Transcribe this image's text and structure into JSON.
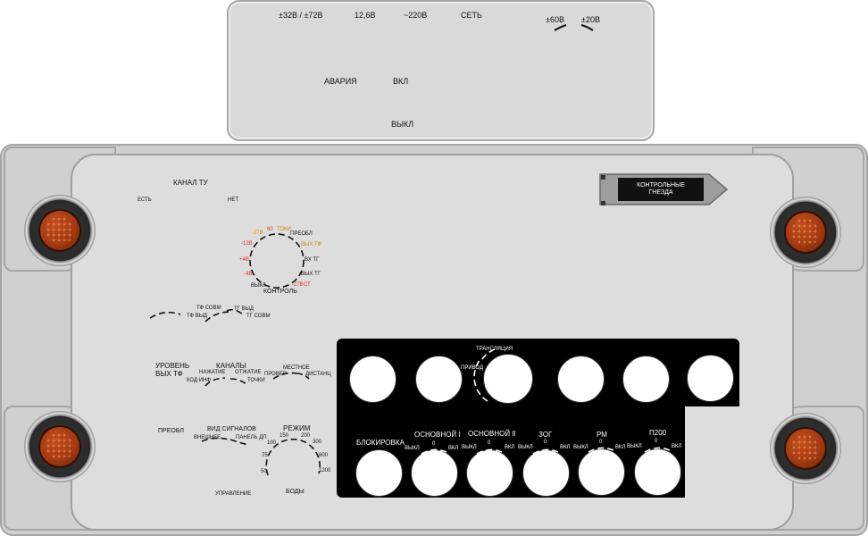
{
  "top_panel": {
    "v_32_72": "±32В / ±72В",
    "v_12_6": "12,6В",
    "v_220": "~220В",
    "network": "СЕТЬ",
    "v_60": "±60В",
    "v_20": "±20В",
    "alarm": "АВАРИЯ",
    "on": "ВКЛ",
    "off": "ВЫКЛ"
  },
  "channel_tu": {
    "title": "КАНАЛ ТУ",
    "yes": "ЕСТЬ",
    "no": "НЕТ"
  },
  "control_dial": {
    "title": "КОНТРОЛЬ",
    "positions": [
      {
        "text": "-27В",
        "color": "#d98a00"
      },
      {
        "text": "60",
        "color": "#e03020"
      },
      {
        "text": "ТОКИ",
        "color": "#d98a00"
      },
      {
        "text": "ПРЕОБЛ",
        "color": "#111111"
      },
      {
        "text": "ВЫХ ТФ",
        "color": "#d98a00"
      },
      {
        "text": "ВХ ТГ",
        "color": "#111111"
      },
      {
        "text": "ВЫХ ТГ",
        "color": "#111111"
      },
      {
        "text": "-27В",
        "color": "#e03020"
      },
      {
        "text": "СТ",
        "color": "#e03020"
      },
      {
        "text": "ВЫКЛ",
        "color": "#111111"
      },
      {
        "text": "-4В",
        "color": "#e03020"
      },
      {
        "text": "+4В",
        "color": "#e03020"
      },
      {
        "text": "-12В",
        "color": "#e03020"
      }
    ]
  },
  "tf_tg": {
    "tf_sovm": "ТФ СОВМ",
    "tf_vyd": "ТФ ВЫД",
    "tg_vyd": "ТГ ВЫД",
    "tg_sovm": "ТГ СОВМ"
  },
  "level": {
    "title_line1": "УРОВЕНЬ",
    "title_line2": "ВЫХ ТФ",
    "channels_title": "КАНАЛЫ",
    "pressing": "НАЖАТИЕ",
    "release": "ОТЖАТИЕ",
    "kod_inf": "КОД ИНФ",
    "tochki": "ТОЧКИ",
    "check": "ПРОВЕР",
    "local": "МЕСТНОЕ",
    "remote": "ДИСТАНЦ"
  },
  "signals": {
    "preobl": "ПРЕОБЛ",
    "title": "ВИД СИГНАЛОВ",
    "external": "ВНЕШНЕЕ",
    "panel_dp": "ПАНЕЛЬ ДП",
    "control": "УПРАВЛЕНИЕ"
  },
  "mode": {
    "title": "РЕЖИМ",
    "baud": "БОДЫ",
    "rates": [
      "50",
      "75",
      "100",
      "150",
      "200",
      "300",
      "600",
      "1200"
    ]
  },
  "sockets": {
    "line1": "КОНТРОЛЬНЫЕ",
    "line2": "ГНЕЗДА"
  },
  "black_panel": {
    "translation": "ТРАНСЛЯЦИЯ",
    "drive": "ПРИВОД",
    "blocking": "БЛОКИРОВКА",
    "switches": [
      {
        "title": "ОСНОВНОЙ I",
        "off": "ВЫКЛ",
        "zero": "0",
        "on": "ВКЛ"
      },
      {
        "title": "ОСНОВНОЙ II",
        "off": "ВЫКЛ",
        "zero": "0",
        "on": "ВКЛ"
      },
      {
        "title": "ЗОГ",
        "off": "ВЫКЛ",
        "zero": "0",
        "on": "ВКЛ"
      },
      {
        "title": "РМ",
        "off": "ВЫКЛ",
        "zero": "0",
        "on": "ВКЛ"
      },
      {
        "title": "П200",
        "off": "ВЫКЛ",
        "zero": "0",
        "on": "ВКЛ"
      }
    ]
  }
}
